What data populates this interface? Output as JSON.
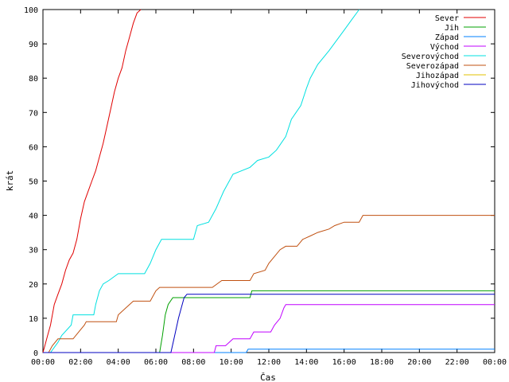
{
  "chart_data": {
    "type": "line",
    "title": "",
    "xlabel": "Čas",
    "ylabel": "krát",
    "xlim_hours": [
      0,
      24
    ],
    "ylim": [
      0,
      100
    ],
    "grid": false,
    "legend_position": "top-right",
    "x_ticks": [
      "00:00",
      "02:00",
      "04:00",
      "06:00",
      "08:00",
      "10:00",
      "12:00",
      "14:00",
      "16:00",
      "18:00",
      "20:00",
      "22:00",
      "00:00"
    ],
    "y_ticks": [
      "0",
      "10",
      "20",
      "30",
      "40",
      "50",
      "60",
      "70",
      "80",
      "90",
      "100"
    ],
    "series": [
      {
        "name": "Sever",
        "color": "#e00000",
        "points": [
          [
            0,
            0
          ],
          [
            0.1,
            2
          ],
          [
            0.25,
            5
          ],
          [
            0.4,
            8
          ],
          [
            0.6,
            14
          ],
          [
            0.8,
            17
          ],
          [
            1,
            20
          ],
          [
            1.2,
            24
          ],
          [
            1.4,
            27
          ],
          [
            1.6,
            29
          ],
          [
            1.8,
            33
          ],
          [
            2,
            39
          ],
          [
            2.2,
            44
          ],
          [
            2.4,
            47
          ],
          [
            2.6,
            50
          ],
          [
            2.8,
            53
          ],
          [
            3,
            57
          ],
          [
            3.2,
            61
          ],
          [
            3.4,
            66
          ],
          [
            3.6,
            71
          ],
          [
            3.8,
            76
          ],
          [
            4,
            80
          ],
          [
            4.2,
            83
          ],
          [
            4.4,
            88
          ],
          [
            4.6,
            92
          ],
          [
            4.8,
            96
          ],
          [
            5,
            99
          ],
          [
            5.2,
            100
          ]
        ]
      },
      {
        "name": "Jih",
        "color": "#00a000",
        "points": [
          [
            0,
            0
          ],
          [
            6.2,
            0
          ],
          [
            6.35,
            5
          ],
          [
            6.5,
            11
          ],
          [
            6.65,
            14
          ],
          [
            6.9,
            16
          ],
          [
            11,
            16
          ],
          [
            11.1,
            18
          ],
          [
            24,
            18
          ]
        ]
      },
      {
        "name": "Západ",
        "color": "#0080ff",
        "points": [
          [
            0,
            0
          ],
          [
            10.8,
            0
          ],
          [
            10.9,
            1
          ],
          [
            24,
            1
          ]
        ]
      },
      {
        "name": "Východ",
        "color": "#c000ff",
        "points": [
          [
            0,
            0
          ],
          [
            9.1,
            0
          ],
          [
            9.2,
            2
          ],
          [
            9.7,
            2
          ],
          [
            10.1,
            4
          ],
          [
            11,
            4
          ],
          [
            11.2,
            6
          ],
          [
            12.1,
            6
          ],
          [
            12.3,
            8
          ],
          [
            12.6,
            10
          ],
          [
            12.8,
            13
          ],
          [
            12.9,
            14
          ],
          [
            24,
            14
          ]
        ]
      },
      {
        "name": "Severovýchod",
        "color": "#00e0e0",
        "points": [
          [
            0,
            0
          ],
          [
            0.4,
            0
          ],
          [
            0.8,
            3
          ],
          [
            1,
            5
          ],
          [
            1.5,
            8
          ],
          [
            1.6,
            11
          ],
          [
            2.7,
            11
          ],
          [
            2.8,
            14
          ],
          [
            3,
            18
          ],
          [
            3.2,
            20
          ],
          [
            3.5,
            21
          ],
          [
            4,
            23
          ],
          [
            5.4,
            23
          ],
          [
            5.7,
            26
          ],
          [
            6,
            30
          ],
          [
            6.3,
            33
          ],
          [
            8,
            33
          ],
          [
            8.2,
            37
          ],
          [
            8.8,
            38
          ],
          [
            9.2,
            42
          ],
          [
            9.6,
            47
          ],
          [
            10.1,
            52
          ],
          [
            11,
            54
          ],
          [
            11.4,
            56
          ],
          [
            12,
            57
          ],
          [
            12.4,
            59
          ],
          [
            12.9,
            63
          ],
          [
            13.2,
            68
          ],
          [
            13.7,
            72
          ],
          [
            14,
            77
          ],
          [
            14.2,
            80
          ],
          [
            14.6,
            84
          ],
          [
            15.2,
            88
          ],
          [
            15.6,
            91
          ],
          [
            16,
            94
          ],
          [
            16.4,
            97
          ],
          [
            16.8,
            100
          ]
        ]
      },
      {
        "name": "Severozápad",
        "color": "#c05010",
        "points": [
          [
            0,
            0
          ],
          [
            0.3,
            0
          ],
          [
            0.5,
            2
          ],
          [
            0.8,
            4
          ],
          [
            1.6,
            4
          ],
          [
            1.9,
            6
          ],
          [
            2.2,
            8
          ],
          [
            2.3,
            9
          ],
          [
            3.9,
            9
          ],
          [
            4,
            11
          ],
          [
            4.4,
            13
          ],
          [
            4.8,
            15
          ],
          [
            5.7,
            15
          ],
          [
            6,
            18
          ],
          [
            6.2,
            19
          ],
          [
            9,
            19
          ],
          [
            9.5,
            21
          ],
          [
            11,
            21
          ],
          [
            11.2,
            23
          ],
          [
            11.8,
            24
          ],
          [
            12,
            26
          ],
          [
            12.3,
            28
          ],
          [
            12.6,
            30
          ],
          [
            12.9,
            31
          ],
          [
            13.5,
            31
          ],
          [
            13.8,
            33
          ],
          [
            14.2,
            34
          ],
          [
            14.6,
            35
          ],
          [
            15.2,
            36
          ],
          [
            15.5,
            37
          ],
          [
            16,
            38
          ],
          [
            16.8,
            38
          ],
          [
            17,
            40
          ],
          [
            24,
            40
          ]
        ]
      },
      {
        "name": "Jihozápad",
        "color": "#e0c000",
        "points": []
      },
      {
        "name": "Jihovýchod",
        "color": "#0000c0",
        "points": [
          [
            0,
            0
          ],
          [
            6.8,
            0
          ],
          [
            7,
            5
          ],
          [
            7.2,
            10
          ],
          [
            7.35,
            13
          ],
          [
            7.5,
            16
          ],
          [
            7.65,
            17
          ],
          [
            24,
            17
          ]
        ]
      }
    ]
  }
}
